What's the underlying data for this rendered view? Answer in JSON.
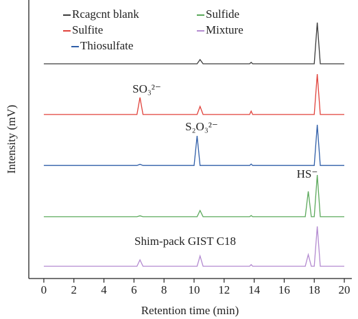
{
  "chart_data": {
    "type": "line",
    "xlabel": "Retention time (min)",
    "ylabel": "Intensity (mV)",
    "x": [
      0,
      6.2,
      6.4,
      6.6,
      10.0,
      10.2,
      10.4,
      10.6,
      13.7,
      13.8,
      13.9,
      17.4,
      17.6,
      17.8,
      18.0,
      18.2,
      18.4,
      20
    ],
    "xlim": [
      -1,
      20.5
    ],
    "xticks": [
      0,
      2,
      4,
      6,
      8,
      10,
      12,
      14,
      16,
      18,
      20
    ],
    "ylim": [
      0,
      100
    ],
    "series": [
      {
        "name": "Rcagcnt blank",
        "color": "#3a3a3a",
        "values": [
          77.1,
          77.1,
          77.1,
          77.1,
          77.1,
          77.1,
          78.6,
          77.1,
          77.1,
          77.6,
          77.1,
          77.1,
          77.1,
          77.1,
          77.1,
          91.9,
          77.1,
          77.1
        ]
      },
      {
        "name": "Sulfite",
        "color": "#e0413a",
        "values": [
          58.9,
          58.9,
          65.0,
          58.9,
          58.9,
          58.9,
          61.8,
          58.9,
          58.9,
          60.1,
          58.9,
          58.9,
          58.9,
          58.9,
          58.9,
          73.4,
          58.9,
          58.9
        ]
      },
      {
        "name": "Thiosulfate",
        "color": "#2f5ea8",
        "values": [
          40.6,
          40.6,
          41.0,
          40.6,
          40.6,
          51.2,
          40.6,
          40.6,
          40.6,
          41.1,
          40.6,
          40.6,
          40.6,
          40.6,
          40.6,
          55.2,
          40.6,
          40.6
        ]
      },
      {
        "name": "Sulfide",
        "color": "#5aa85a",
        "values": [
          22.2,
          22.2,
          22.5,
          22.2,
          22.2,
          22.2,
          24.4,
          22.2,
          22.2,
          22.6,
          22.2,
          22.2,
          31.3,
          22.2,
          22.2,
          37.2,
          22.2,
          22.2
        ]
      },
      {
        "name": "Mixture",
        "color": "#b38ad0",
        "values": [
          4.4,
          4.4,
          6.7,
          4.4,
          4.4,
          4.4,
          8.1,
          4.4,
          4.4,
          5.0,
          4.4,
          4.4,
          8.6,
          4.4,
          4.4,
          18.7,
          4.4,
          4.4
        ]
      }
    ],
    "annotations": [
      "SO₃²⁻",
      "S₂O₃²⁻",
      "HS⁻",
      "Shim-pack GIST C18"
    ]
  }
}
